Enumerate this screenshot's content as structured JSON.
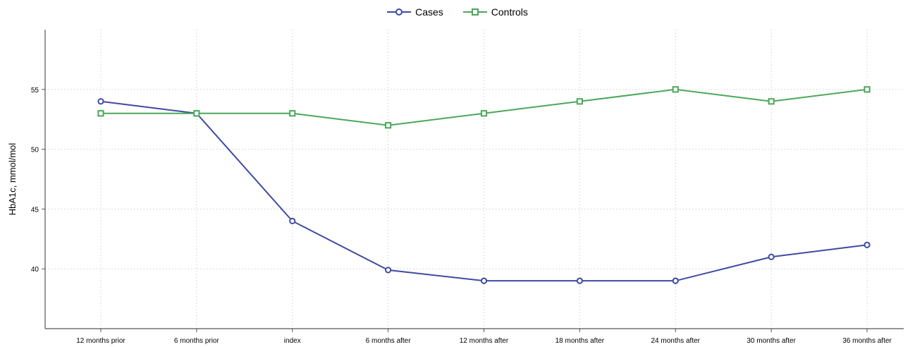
{
  "chart_data": {
    "type": "line",
    "ylabel": "HbA1c, mmol/mol",
    "xlabel": "",
    "categories": [
      "12 months prior",
      "6 months prior",
      "index",
      "6 months after",
      "12 months after",
      "18 months after",
      "24 months after",
      "30 months after",
      "36 months after"
    ],
    "ylim": [
      35,
      60
    ],
    "yticks": [
      40,
      45,
      50,
      55
    ],
    "grid": true,
    "legend_position": "top-center",
    "series": [
      {
        "name": "Cases",
        "color": "#3e4aa3",
        "marker": "circle",
        "values": [
          54,
          53,
          44,
          39.9,
          39,
          39,
          39,
          41,
          42
        ]
      },
      {
        "name": "Controls",
        "color": "#4aa85a",
        "marker": "square",
        "values": [
          53,
          53,
          53,
          52,
          53,
          54,
          55,
          54,
          55
        ]
      }
    ]
  }
}
